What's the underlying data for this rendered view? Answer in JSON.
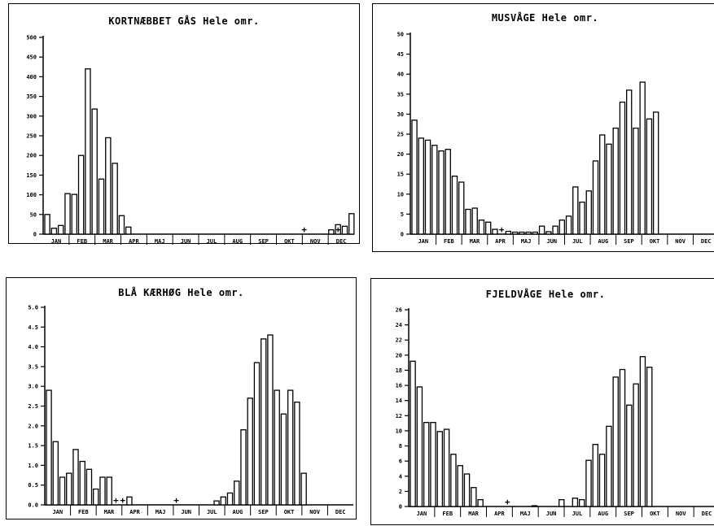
{
  "chart_data": [
    {
      "type": "bar",
      "title": "KORTNÆBBET GÅS Hele omr.",
      "xlabel": "",
      "ylabel": "",
      "ylim": [
        0,
        500
      ],
      "yticks": [
        0,
        50,
        100,
        150,
        200,
        250,
        300,
        350,
        400,
        450,
        500
      ],
      "ytick_labels": [
        "0",
        "50",
        "100",
        "150",
        "200",
        "250",
        "300",
        "350",
        "400",
        "450",
        "500"
      ],
      "months": [
        "JAN",
        "FEB",
        "MAR",
        "APR",
        "MAJ",
        "JUN",
        "JUL",
        "AUG",
        "SEP",
        "OKT",
        "NOV",
        "DEC"
      ],
      "values": [
        50,
        15,
        22,
        103,
        101,
        200,
        420,
        318,
        140,
        245,
        180,
        47,
        18,
        0,
        0,
        0,
        0,
        0,
        0,
        0,
        0,
        0,
        0,
        0,
        0,
        0,
        0,
        0,
        0,
        0,
        0,
        0,
        0,
        0,
        0,
        0,
        0,
        0,
        0,
        0,
        0,
        0,
        11,
        24,
        20,
        52
      ],
      "plus_markers": [
        38,
        43
      ],
      "grid": false
    },
    {
      "type": "bar",
      "title": "MUSVÅGE Hele omr.",
      "xlabel": "",
      "ylabel": "",
      "ylim": [
        0,
        50
      ],
      "yticks": [
        0,
        5,
        10,
        15,
        20,
        25,
        30,
        35,
        40,
        45,
        50
      ],
      "ytick_labels": [
        "0",
        "5",
        "10",
        "15",
        "20",
        "25",
        "30",
        "35",
        "40",
        "45",
        "50"
      ],
      "months": [
        "JAN",
        "FEB",
        "MAR",
        "APR",
        "MAJ",
        "JUN",
        "JUL",
        "AUG",
        "SEP",
        "OKT",
        "NOV",
        "DEC"
      ],
      "values": [
        28.5,
        24,
        23.5,
        22.2,
        20.8,
        21.2,
        14.5,
        13,
        6.2,
        6.5,
        3.5,
        3,
        1.2,
        0,
        0.7,
        0.5,
        0.5,
        0.5,
        0.5,
        2,
        0.6,
        2,
        3.5,
        4.5,
        11.8,
        8,
        10.8,
        18.3,
        24.8,
        22.5,
        26.5,
        33,
        36,
        26.5,
        38,
        28.8,
        30.5
      ],
      "plus_markers": [
        13
      ],
      "grid": false
    },
    {
      "type": "bar",
      "title": "BLÅ KÆRHØG Hele omr.",
      "xlabel": "",
      "ylabel": "",
      "ylim": [
        0,
        5
      ],
      "yticks": [
        0,
        0.5,
        1,
        1.5,
        2,
        2.5,
        3,
        3.5,
        4,
        4.5,
        5
      ],
      "ytick_labels": [
        "0.0",
        "0.5",
        "1.0",
        "1.5",
        "2.0",
        "2.5",
        "3.0",
        "3.5",
        "4.0",
        "4.5",
        "5.0"
      ],
      "months": [
        "JAN",
        "FEB",
        "MAR",
        "APR",
        "MAJ",
        "JUN",
        "JUL",
        "AUG",
        "SEP",
        "OKT",
        "NOV",
        "DEC"
      ],
      "values": [
        2.9,
        1.6,
        0.7,
        0.8,
        1.4,
        1.1,
        0.9,
        0.4,
        0.7,
        0.7,
        0,
        0,
        0.2,
        0,
        0,
        0,
        0,
        0,
        0,
        0,
        0,
        0,
        0,
        0,
        0,
        0.1,
        0.2,
        0.3,
        0.6,
        1.9,
        2.7,
        3.6,
        4.2,
        4.3,
        2.9,
        2.3,
        2.9,
        2.6,
        0.8
      ],
      "plus_markers": [
        10,
        11,
        19
      ],
      "grid": false
    },
    {
      "type": "bar",
      "title": "FJELDVÅGE Hele omr.",
      "xlabel": "",
      "ylabel": "",
      "ylim": [
        0,
        26
      ],
      "yticks": [
        0,
        2,
        4,
        6,
        8,
        10,
        12,
        14,
        16,
        18,
        20,
        22,
        24,
        26
      ],
      "ytick_labels": [
        "0",
        "2",
        "4",
        "6",
        "8",
        "10",
        "12",
        "14",
        "16",
        "18",
        "20",
        "22",
        "24",
        "26"
      ],
      "months": [
        "JAN",
        "FEB",
        "MAR",
        "APR",
        "MAJ",
        "JUN",
        "JUL",
        "AUG",
        "SEP",
        "OKT",
        "NOV",
        "DEC"
      ],
      "values": [
        19.2,
        15.8,
        11.1,
        11.1,
        9.9,
        10.2,
        6.9,
        5.4,
        4.3,
        2.5,
        0.9,
        0,
        0,
        0,
        0,
        0,
        0,
        0,
        0.1,
        0,
        0,
        0,
        0.9,
        0,
        1.1,
        0.9,
        6.1,
        8.2,
        6.9,
        10.6,
        17.1,
        18.1,
        13.4,
        16.2,
        19.8,
        18.4
      ],
      "plus_markers": [
        14
      ],
      "grid": false
    }
  ]
}
